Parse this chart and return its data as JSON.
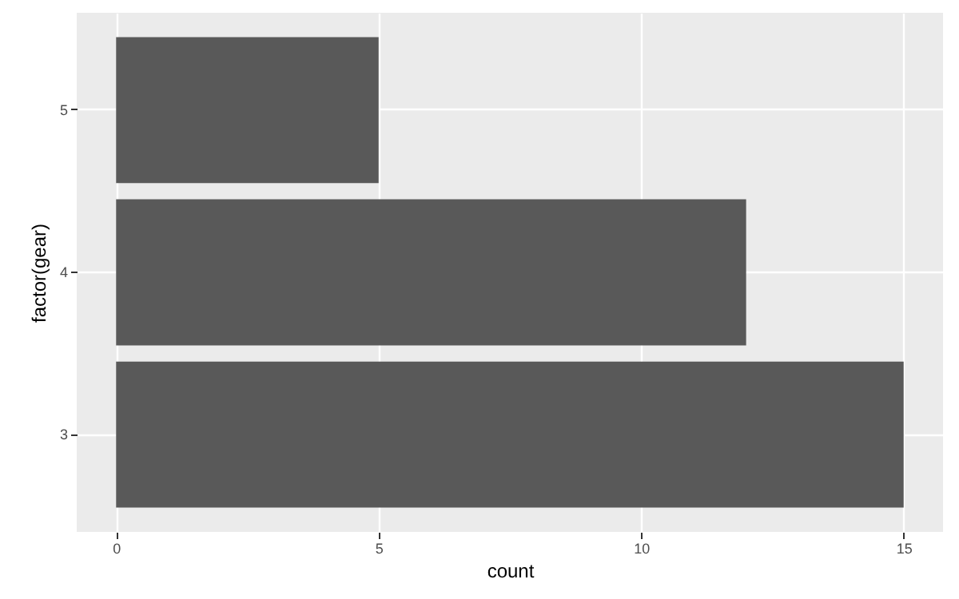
{
  "chart_data": {
    "type": "bar",
    "orientation": "horizontal",
    "xlabel": "count",
    "ylabel": "factor(gear)",
    "categories": [
      "5",
      "4",
      "3"
    ],
    "series": [
      {
        "color": "#595959",
        "values": [
          5,
          12,
          15
        ]
      }
    ],
    "xlim": [
      -0.75,
      15.75
    ],
    "xticks": [
      0,
      5,
      10,
      15
    ],
    "grid": true
  }
}
